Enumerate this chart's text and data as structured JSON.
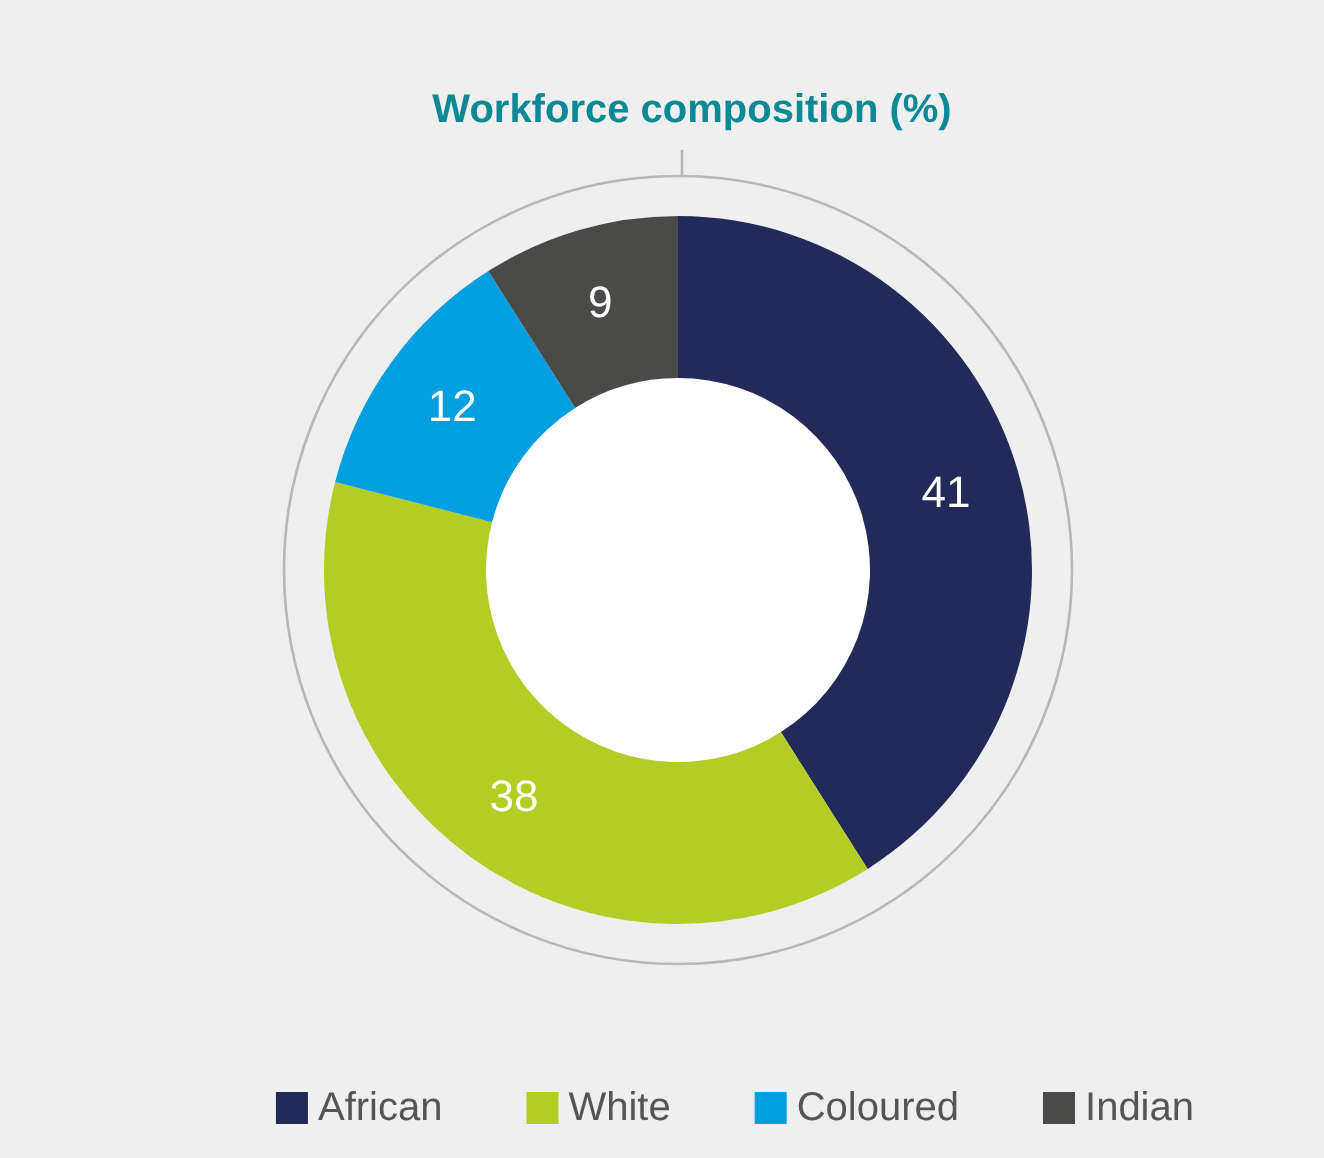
{
  "chart_data": {
    "type": "donut",
    "title": "Workforce composition (%)",
    "categories": [
      "African",
      "White",
      "Coloured",
      "Indian"
    ],
    "values": [
      41,
      38,
      12,
      9
    ],
    "colors": [
      "#232a5a",
      "#b3cd24",
      "#009fe0",
      "#4a4a49"
    ],
    "data_labels": true,
    "legend": "bottom"
  }
}
